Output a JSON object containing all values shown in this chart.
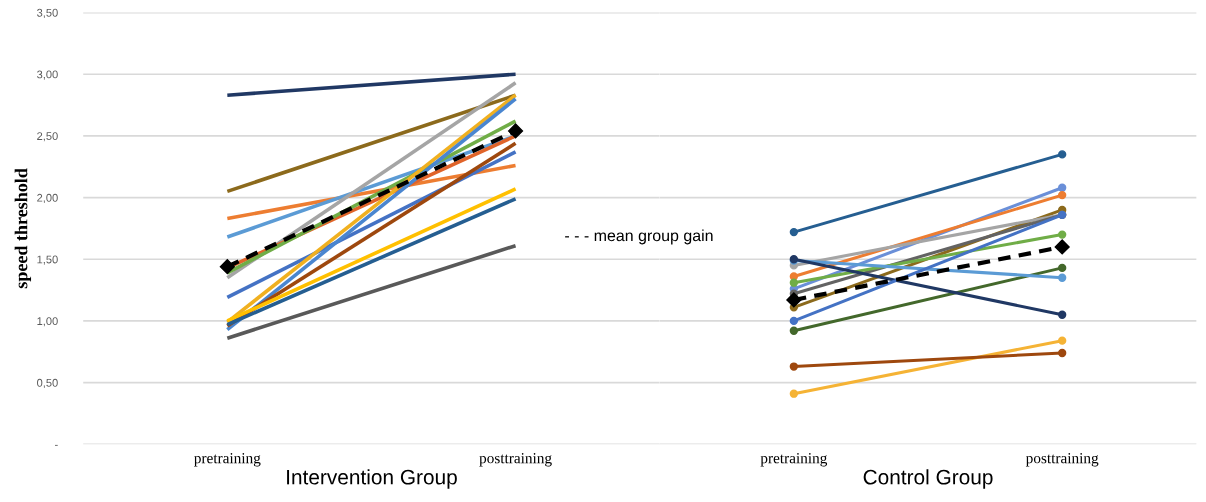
{
  "chart_data": [
    {
      "type": "line",
      "xlabel": "Intervention Group",
      "ylabel": "speed threshold",
      "categories": [
        "pretraining",
        "posttraining"
      ],
      "ylim": [
        0,
        3.5
      ],
      "yticks": [
        {
          "value": 0,
          "label": "-"
        },
        {
          "value": 0.5,
          "label": "0,50"
        },
        {
          "value": 1,
          "label": "1,00"
        },
        {
          "value": 1.5,
          "label": "1,50"
        },
        {
          "value": 2,
          "label": "2,00"
        },
        {
          "value": 2.5,
          "label": "2,50"
        },
        {
          "value": 3,
          "label": "3,00"
        },
        {
          "value": 3.5,
          "label": "3,50"
        }
      ],
      "grid": "y",
      "annotations": [
        "- - - mean group gain"
      ],
      "series": [
        {
          "color": "#203864",
          "values": [
            2.83,
            3.0
          ]
        },
        {
          "color": "#8c6a1c",
          "values": [
            2.05,
            2.83
          ]
        },
        {
          "color": "#ed7d31",
          "values": [
            1.83,
            2.26
          ]
        },
        {
          "color": "#5b9bd5",
          "values": [
            1.68,
            2.5
          ]
        },
        {
          "color": "#a5a5a5",
          "values": [
            1.35,
            2.93
          ]
        },
        {
          "color": "#e0642a",
          "values": [
            1.43,
            2.5
          ]
        },
        {
          "color": "#70ad47",
          "values": [
            1.39,
            2.62
          ]
        },
        {
          "color": "#4472c4",
          "values": [
            1.19,
            2.37
          ]
        },
        {
          "color": "#f0b020",
          "values": [
            0.99,
            2.83
          ]
        },
        {
          "color": "#4a86d0",
          "values": [
            0.93,
            2.8
          ]
        },
        {
          "color": "#9e480e",
          "values": [
            0.96,
            2.44
          ]
        },
        {
          "color": "#ffc000",
          "values": [
            1.0,
            2.07
          ]
        },
        {
          "color": "#255e91",
          "values": [
            0.97,
            1.99
          ]
        },
        {
          "color": "#595959",
          "values": [
            0.86,
            1.61
          ]
        },
        {
          "color": "#000000",
          "line_style": "dashed",
          "marker": "diamond",
          "values": [
            1.44,
            2.54
          ]
        }
      ]
    },
    {
      "type": "line",
      "xlabel": "Control Group",
      "categories": [
        "pretraining",
        "posttraining"
      ],
      "ylim": [
        0,
        3.5
      ],
      "yticks": [
        0,
        0.5,
        1,
        1.5,
        2,
        2.5,
        3,
        3.5
      ],
      "tick_labels": "x",
      "grid": "y",
      "marker": "circle",
      "series": [
        {
          "color": "#255e91",
          "values": [
            1.72,
            2.35
          ]
        },
        {
          "color": "#6a8fd8",
          "values": [
            1.26,
            2.08
          ]
        },
        {
          "color": "#ed7d31",
          "values": [
            1.36,
            2.02
          ]
        },
        {
          "color": "#8c6a1c",
          "values": [
            1.11,
            1.9
          ]
        },
        {
          "color": "#a5a5a5",
          "values": [
            1.45,
            1.86
          ]
        },
        {
          "color": "#636363",
          "values": [
            1.22,
            1.86
          ]
        },
        {
          "color": "#70ad47",
          "values": [
            1.31,
            1.7
          ]
        },
        {
          "color": "#43682b",
          "values": [
            0.92,
            1.43
          ]
        },
        {
          "color": "#5b9bd5",
          "values": [
            1.49,
            1.35
          ]
        },
        {
          "color": "#203864",
          "values": [
            1.5,
            1.05
          ]
        },
        {
          "color": "#4472c4",
          "values": [
            1.0,
            1.86
          ]
        },
        {
          "color": "#f5b335",
          "values": [
            0.41,
            0.84
          ]
        },
        {
          "color": "#9e480e",
          "values": [
            0.63,
            0.74
          ]
        },
        {
          "color": "#000000",
          "line_style": "dashed",
          "marker": "diamond",
          "values": [
            1.17,
            1.6
          ]
        }
      ]
    }
  ]
}
